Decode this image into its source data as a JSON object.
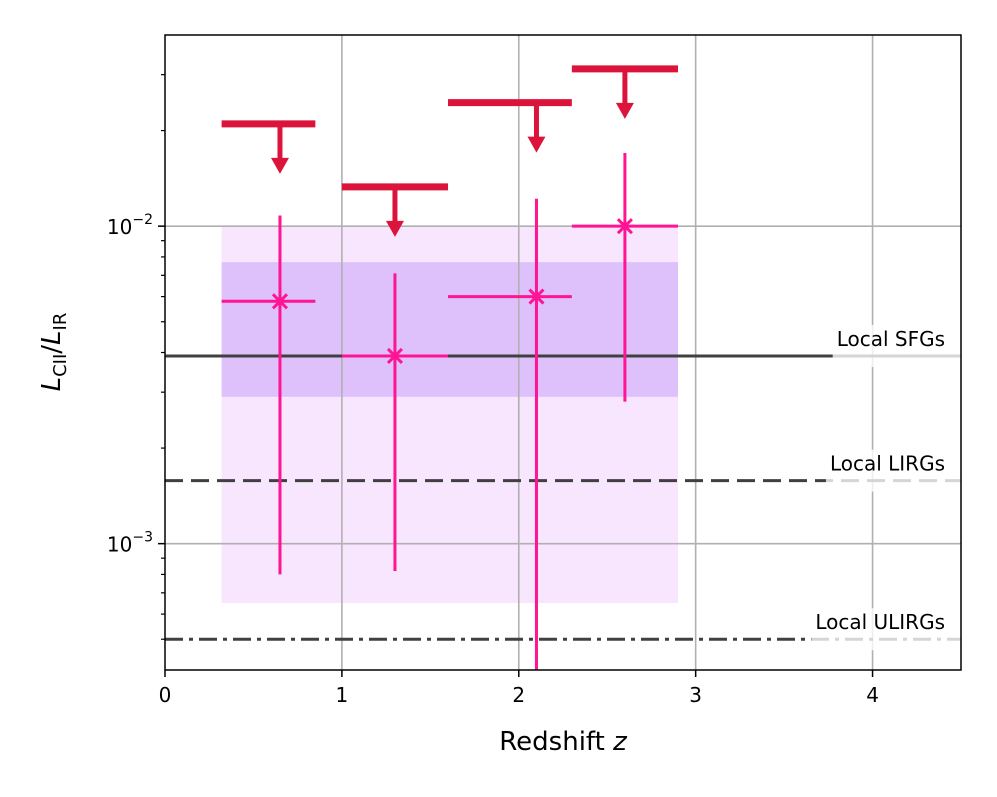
{
  "chart_data": {
    "type": "scatter",
    "xlabel": "Redshift",
    "xlabel_var": "z",
    "ylabel": "L_CII/L_IR",
    "ylabel_parts": {
      "l1": "L",
      "s1": "CII",
      "slash": "/",
      "l2": "L",
      "s2": "IR"
    },
    "xlim": [
      0,
      4.5
    ],
    "ylim": [
      0.0004,
      0.04
    ],
    "yscale": "log",
    "grid": true,
    "x_ticks": [
      0,
      1,
      2,
      3,
      4
    ],
    "x_tick_labels": [
      "0",
      "1",
      "2",
      "3",
      "4"
    ],
    "y_ticks": [
      0.01,
      0.001
    ],
    "y_tick_labels": [
      {
        "base": "10",
        "exp": "−2"
      },
      {
        "base": "10",
        "exp": "−3"
      }
    ],
    "colors": {
      "points": "#ff1493",
      "upper_limits": "#dc143c",
      "band_outer": "#f7e6fd",
      "band_inner": "#dec0fb",
      "reference_lines": "#404040"
    },
    "bands": [
      {
        "x": [
          0.32,
          2.9
        ],
        "y": [
          0.00065,
          0.01
        ]
      },
      {
        "x": [
          0.32,
          2.9
        ],
        "y": [
          0.0029,
          0.0077
        ]
      }
    ],
    "points": [
      {
        "x": 0.65,
        "y": 0.0058,
        "xerr": [
          0.32,
          0.85
        ],
        "yerr": [
          0.0008,
          0.0108
        ]
      },
      {
        "x": 1.3,
        "y": 0.0039,
        "xerr": [
          1.0,
          1.6
        ],
        "yerr": [
          0.00082,
          0.0071
        ]
      },
      {
        "x": 2.1,
        "y": 0.006,
        "xerr": [
          1.6,
          2.3
        ],
        "yerr": [
          0.0004,
          0.0122
        ]
      },
      {
        "x": 2.6,
        "y": 0.01,
        "xerr": [
          2.3,
          2.9
        ],
        "yerr": [
          0.0028,
          0.017
        ]
      }
    ],
    "upper_limits": [
      {
        "x": 0.65,
        "y": 0.021,
        "xrange": [
          0.32,
          0.85
        ]
      },
      {
        "x": 1.3,
        "y": 0.0133,
        "xrange": [
          1.0,
          1.6
        ]
      },
      {
        "x": 2.1,
        "y": 0.0245,
        "xrange": [
          1.6,
          2.3
        ]
      },
      {
        "x": 2.6,
        "y": 0.0313,
        "xrange": [
          2.3,
          2.9
        ]
      }
    ],
    "reference_lines": [
      {
        "name": "Local SFGs",
        "y": 0.0039,
        "style": "solid"
      },
      {
        "name": "Local LIRGs",
        "y": 0.00158,
        "style": "dashed"
      },
      {
        "name": "Local ULIRGs",
        "y": 0.0005,
        "style": "dashdot"
      }
    ]
  }
}
